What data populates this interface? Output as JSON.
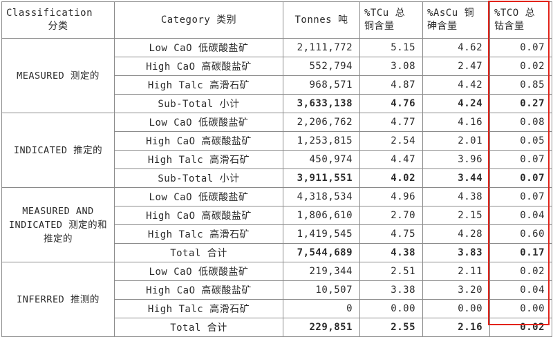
{
  "headers": {
    "classification": [
      "Classification",
      "分类"
    ],
    "category": "Category 类别",
    "tonnes": "Tonnes 吨",
    "tcu": [
      "%TCu 总",
      "铜含量"
    ],
    "ascu": [
      "%AsCu 铜",
      "砷含量"
    ],
    "tco": [
      "%TCO 总",
      "钴含量"
    ]
  },
  "groups": [
    {
      "classification": "MEASURED 测定的",
      "rows": [
        {
          "category": "Low CaO 低碳酸盐矿",
          "tonnes": "2,111,772",
          "tcu": "5.15",
          "ascu": "4.62",
          "tco": "0.07"
        },
        {
          "category": "High CaO 高碳酸盐矿",
          "tonnes": "552,794",
          "tcu": "3.08",
          "ascu": "2.47",
          "tco": "0.02"
        },
        {
          "category": "High Talc 高滑石矿",
          "tonnes": "968,571",
          "tcu": "4.87",
          "ascu": "4.42",
          "tco": "0.85"
        },
        {
          "category": "Sub-Total 小计",
          "tonnes": "3,633,138",
          "tcu": "4.76",
          "ascu": "4.24",
          "tco": "0.27",
          "total": true
        }
      ]
    },
    {
      "classification": "INDICATED 推定的",
      "rows": [
        {
          "category": "Low CaO 低碳酸盐矿",
          "tonnes": "2,206,762",
          "tcu": "4.77",
          "ascu": "4.16",
          "tco": "0.08"
        },
        {
          "category": "High CaO 高碳酸盐矿",
          "tonnes": "1,253,815",
          "tcu": "2.54",
          "ascu": "2.01",
          "tco": "0.05"
        },
        {
          "category": "High Talc 高滑石矿",
          "tonnes": "450,974",
          "tcu": "4.47",
          "ascu": "3.96",
          "tco": "0.07"
        },
        {
          "category": "Sub-Total 小计",
          "tonnes": "3,911,551",
          "tcu": "4.02",
          "ascu": "3.44",
          "tco": "0.07",
          "total": true
        }
      ]
    },
    {
      "classification": "MEASURED AND INDICATED 测定的和推定的",
      "rows": [
        {
          "category": "Low CaO 低碳酸盐矿",
          "tonnes": "4,318,534",
          "tcu": "4.96",
          "ascu": "4.38",
          "tco": "0.07"
        },
        {
          "category": "High CaO 高碳酸盐矿",
          "tonnes": "1,806,610",
          "tcu": "2.70",
          "ascu": "2.15",
          "tco": "0.04"
        },
        {
          "category": "High Talc 高滑石矿",
          "tonnes": "1,419,545",
          "tcu": "4.75",
          "ascu": "4.28",
          "tco": "0.60"
        },
        {
          "category": "Total 合计",
          "tonnes": "7,544,689",
          "tcu": "4.38",
          "ascu": "3.83",
          "tco": "0.17",
          "total": true
        }
      ]
    },
    {
      "classification": "INFERRED 推测的",
      "rows": [
        {
          "category": "Low CaO 低碳酸盐矿",
          "tonnes": "219,344",
          "tcu": "2.51",
          "ascu": "2.11",
          "tco": "0.02"
        },
        {
          "category": "High CaO 高碳酸盐矿",
          "tonnes": "10,507",
          "tcu": "3.38",
          "ascu": "3.20",
          "tco": "0.04"
        },
        {
          "category": "High Talc 高滑石矿",
          "tonnes": "0",
          "tcu": "0.00",
          "ascu": "0.00",
          "tco": "0.00"
        },
        {
          "category": "Total 合计",
          "tonnes": "229,851",
          "tcu": "2.55",
          "ascu": "2.16",
          "tco": "0.02",
          "total": true
        }
      ]
    }
  ],
  "highlight_color": "#e2231a"
}
